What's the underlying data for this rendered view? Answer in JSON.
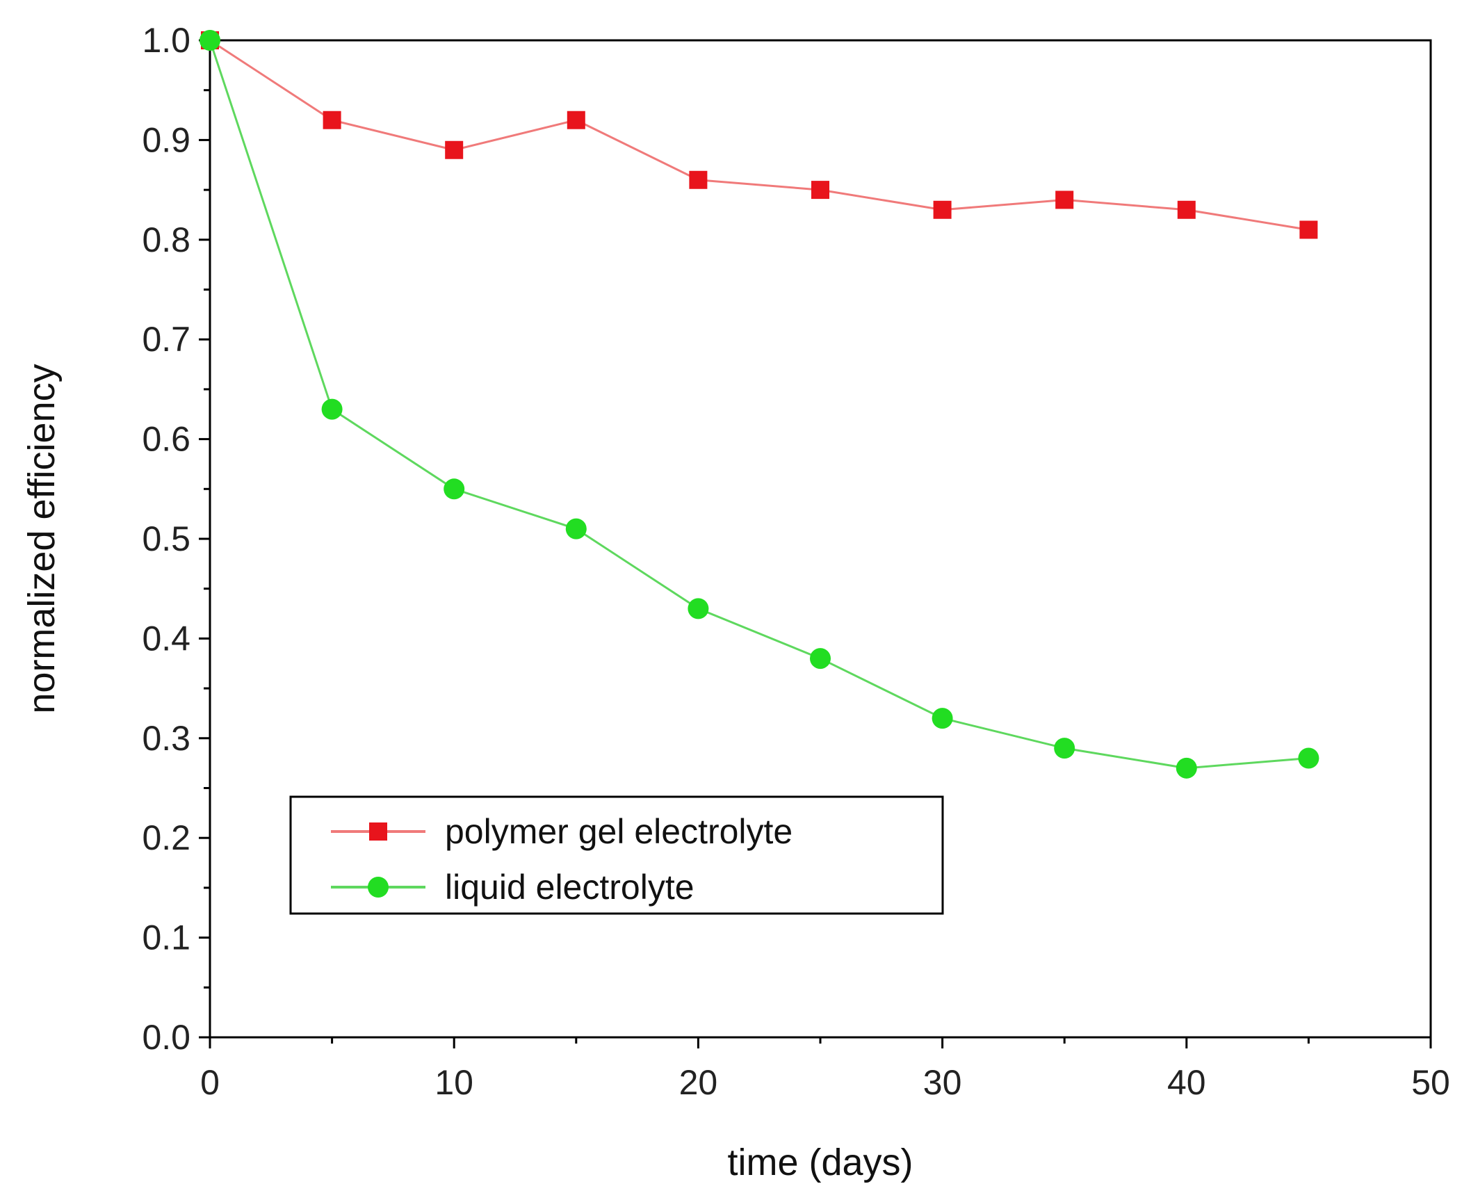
{
  "chart_data": {
    "type": "line",
    "title": "",
    "xlabel": "time (days)",
    "ylabel": "normalized efficiency",
    "xlim": [
      0,
      50
    ],
    "ylim": [
      0.0,
      1.0
    ],
    "x_ticks": [
      0,
      10,
      20,
      30,
      40,
      50
    ],
    "x_tick_labels": [
      "0",
      "10",
      "20",
      "30",
      "40",
      "50"
    ],
    "y_ticks": [
      0.0,
      0.1,
      0.2,
      0.3,
      0.4,
      0.5,
      0.6,
      0.7,
      0.8,
      0.9,
      1.0
    ],
    "y_tick_labels": [
      "0.0",
      "0.1",
      "0.2",
      "0.3",
      "0.4",
      "0.5",
      "0.6",
      "0.7",
      "0.8",
      "0.9",
      "1.0"
    ],
    "grid": false,
    "legend_position": "bottom-left",
    "series": [
      {
        "name": "polymer gel electrolyte",
        "marker": "square",
        "color": "#e8141c",
        "line_color": "#f07a7a",
        "x": [
          0,
          5,
          10,
          15,
          20,
          25,
          30,
          35,
          40,
          45
        ],
        "y": [
          1.0,
          0.92,
          0.89,
          0.92,
          0.86,
          0.85,
          0.83,
          0.84,
          0.83,
          0.81
        ]
      },
      {
        "name": "liquid electrolyte",
        "marker": "circle",
        "color": "#22dd22",
        "line_color": "#5ed85e",
        "x": [
          0,
          5,
          10,
          15,
          20,
          25,
          30,
          35,
          40,
          45
        ],
        "y": [
          1.0,
          0.63,
          0.55,
          0.51,
          0.43,
          0.38,
          0.32,
          0.29,
          0.27,
          0.28
        ]
      }
    ]
  }
}
